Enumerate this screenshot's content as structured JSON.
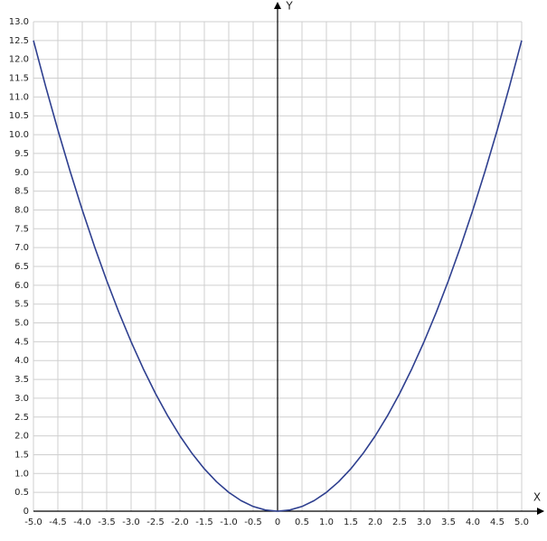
{
  "chart_data": {
    "type": "line",
    "x_label": "X",
    "y_label": "Y",
    "x": [
      -5,
      -4.75,
      -4.5,
      -4.25,
      -4,
      -3.75,
      -3.5,
      -3.25,
      -3,
      -2.75,
      -2.5,
      -2.25,
      -2,
      -1.75,
      -1.5,
      -1.25,
      -1,
      -0.75,
      -0.5,
      -0.25,
      0,
      0.25,
      0.5,
      0.75,
      1,
      1.25,
      1.5,
      1.75,
      2,
      2.25,
      2.5,
      2.75,
      3,
      3.25,
      3.5,
      3.75,
      4,
      4.25,
      4.5,
      4.75,
      5
    ],
    "values": [
      12.5,
      11.28125,
      10.125,
      9.03125,
      8,
      7.03125,
      6.125,
      5.28125,
      4.5,
      3.78125,
      3.125,
      2.53125,
      2,
      1.53125,
      1.125,
      0.78125,
      0.5,
      0.28125,
      0.125,
      0.03125,
      0,
      0.03125,
      0.125,
      0.28125,
      0.5,
      0.78125,
      1.125,
      1.53125,
      2,
      2.53125,
      3.125,
      3.78125,
      4.5,
      5.28125,
      6.125,
      7.03125,
      8,
      9.03125,
      10.125,
      11.28125,
      12.5
    ],
    "color": "#2e3f8f",
    "xlim": [
      -5,
      5
    ],
    "ylim": [
      0,
      13
    ],
    "xticks": [
      {
        "value": -5,
        "label": "-5.0"
      },
      -4.5,
      {
        "value": -4,
        "label": "-4.0"
      },
      -3.5,
      {
        "value": -3,
        "label": "-3.0"
      },
      -2.5,
      {
        "value": -2,
        "label": "-2.0"
      },
      -1.5,
      {
        "value": -1,
        "label": "-1.0"
      },
      -0.5,
      0,
      0.5,
      {
        "value": 1,
        "label": "1.0"
      },
      1.5,
      {
        "value": 2,
        "label": "2.0"
      },
      2.5,
      {
        "value": 3,
        "label": "3.0"
      },
      3.5,
      {
        "value": 4,
        "label": "4.0"
      },
      4.5,
      {
        "value": 5,
        "label": "5.0"
      }
    ],
    "yticks": [
      0,
      0.5,
      {
        "value": 1,
        "label": "1.0"
      },
      1.5,
      {
        "value": 2,
        "label": "2.0"
      },
      2.5,
      {
        "value": 3,
        "label": "3.0"
      },
      3.5,
      {
        "value": 4,
        "label": "4.0"
      },
      4.5,
      {
        "value": 5,
        "label": "5.0"
      },
      5.5,
      {
        "value": 6,
        "label": "6.0"
      },
      6.5,
      {
        "value": 7,
        "label": "7.0"
      },
      7.5,
      {
        "value": 8,
        "label": "8.0"
      },
      8.5,
      {
        "value": 9,
        "label": "9.0"
      },
      9.5,
      {
        "value": 10,
        "label": "10.0"
      },
      10.5,
      {
        "value": 11,
        "label": "11.0"
      },
      11.5,
      {
        "value": 12,
        "label": "12.0"
      },
      12.5,
      {
        "value": 13,
        "label": "13.0"
      }
    ],
    "grid": true
  }
}
